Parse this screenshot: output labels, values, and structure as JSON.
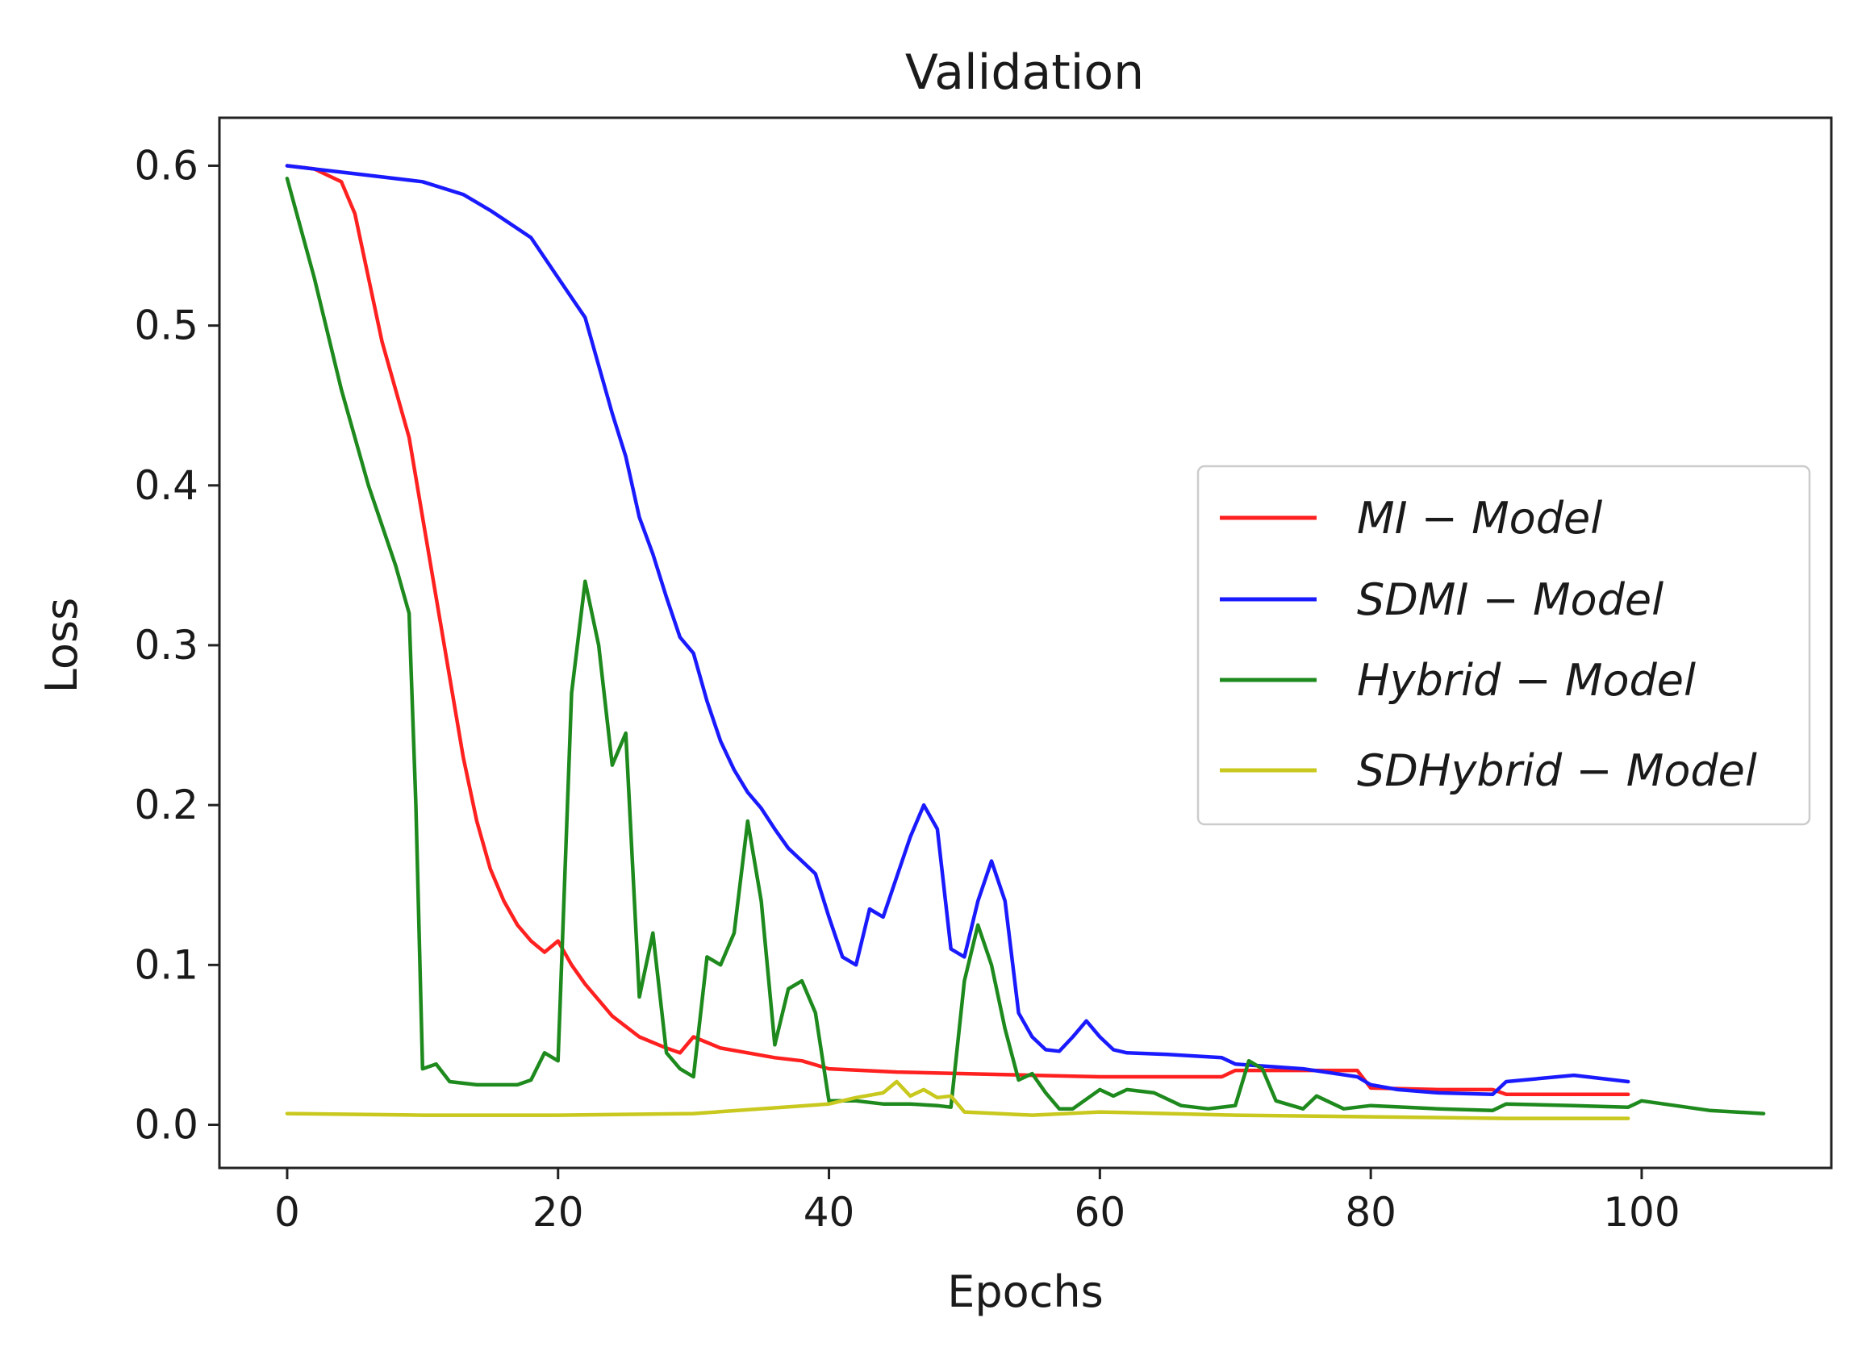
{
  "chart_data": {
    "type": "line",
    "title": "Validation",
    "xlabel": "Epochs",
    "ylabel": "Loss",
    "xlim": [
      -5,
      114
    ],
    "ylim": [
      -0.027,
      0.63
    ],
    "xticks": [
      0,
      20,
      40,
      60,
      80,
      100
    ],
    "yticks": [
      0.0,
      0.1,
      0.2,
      0.3,
      0.4,
      0.5,
      0.6
    ],
    "xtick_labels": [
      "0",
      "20",
      "40",
      "60",
      "80",
      "100"
    ],
    "ytick_labels": [
      "0.0",
      "0.1",
      "0.2",
      "0.3",
      "0.4",
      "0.5",
      "0.6"
    ],
    "legend_position": "center-right",
    "series": [
      {
        "name": "MI − Model",
        "color": "#ff2020",
        "x": [
          0,
          2,
          4,
          5,
          6,
          7,
          8,
          9,
          10,
          11,
          12,
          13,
          14,
          15,
          16,
          17,
          18,
          19,
          20,
          21,
          22,
          24,
          26,
          28,
          29,
          30,
          32,
          34,
          36,
          38,
          40,
          45,
          50,
          55,
          60,
          65,
          69,
          70,
          75,
          79,
          80,
          85,
          89,
          90,
          95,
          99
        ],
        "y": [
          0.6,
          0.598,
          0.59,
          0.57,
          0.53,
          0.49,
          0.46,
          0.43,
          0.38,
          0.33,
          0.28,
          0.23,
          0.19,
          0.16,
          0.14,
          0.125,
          0.115,
          0.108,
          0.115,
          0.1,
          0.088,
          0.068,
          0.055,
          0.048,
          0.045,
          0.055,
          0.048,
          0.045,
          0.042,
          0.04,
          0.035,
          0.033,
          0.032,
          0.031,
          0.03,
          0.03,
          0.03,
          0.034,
          0.034,
          0.034,
          0.023,
          0.022,
          0.022,
          0.019,
          0.019,
          0.019
        ]
      },
      {
        "name": "SDMI − Model",
        "color": "#1a1aff",
        "x": [
          0,
          5,
          10,
          13,
          15,
          18,
          20,
          22,
          23,
          24,
          25,
          26,
          27,
          28,
          29,
          30,
          31,
          32,
          33,
          34,
          35,
          36,
          37,
          38,
          39,
          40,
          41,
          42,
          43,
          44,
          45,
          46,
          47,
          48,
          49,
          50,
          51,
          52,
          53,
          54,
          55,
          56,
          57,
          58,
          59,
          60,
          61,
          62,
          65,
          69,
          70,
          75,
          79,
          80,
          82,
          85,
          89,
          90,
          95,
          99
        ],
        "y": [
          0.6,
          0.595,
          0.59,
          0.582,
          0.572,
          0.555,
          0.53,
          0.505,
          0.475,
          0.445,
          0.418,
          0.38,
          0.357,
          0.33,
          0.305,
          0.295,
          0.265,
          0.24,
          0.222,
          0.208,
          0.198,
          0.185,
          0.173,
          0.165,
          0.157,
          0.13,
          0.105,
          0.1,
          0.135,
          0.13,
          0.155,
          0.18,
          0.2,
          0.185,
          0.11,
          0.105,
          0.14,
          0.165,
          0.14,
          0.07,
          0.055,
          0.047,
          0.046,
          0.055,
          0.065,
          0.055,
          0.047,
          0.045,
          0.044,
          0.042,
          0.038,
          0.035,
          0.03,
          0.025,
          0.022,
          0.02,
          0.019,
          0.027,
          0.031,
          0.027
        ]
      },
      {
        "name": "Hybrid − Model",
        "color": "#1e8a1e",
        "x": [
          0,
          2,
          4,
          6,
          8,
          9,
          9.5,
          10,
          11,
          12,
          14,
          16,
          17,
          18,
          19,
          20,
          21,
          22,
          23,
          24,
          25,
          26,
          27,
          28,
          29,
          30,
          31,
          32,
          33,
          34,
          35,
          36,
          37,
          38,
          39,
          40,
          42,
          44,
          46,
          48,
          49,
          50,
          51,
          52,
          53,
          54,
          55,
          56,
          57,
          58,
          60,
          61,
          62,
          64,
          66,
          68,
          70,
          71,
          72,
          73,
          75,
          76,
          78,
          80,
          85,
          89,
          90,
          95,
          99,
          100,
          105,
          109
        ],
        "y": [
          0.592,
          0.53,
          0.46,
          0.4,
          0.35,
          0.32,
          0.2,
          0.035,
          0.038,
          0.027,
          0.025,
          0.025,
          0.025,
          0.028,
          0.045,
          0.04,
          0.27,
          0.34,
          0.3,
          0.225,
          0.245,
          0.08,
          0.12,
          0.045,
          0.035,
          0.03,
          0.105,
          0.1,
          0.12,
          0.19,
          0.14,
          0.05,
          0.085,
          0.09,
          0.07,
          0.015,
          0.015,
          0.013,
          0.013,
          0.012,
          0.011,
          0.09,
          0.125,
          0.1,
          0.06,
          0.028,
          0.032,
          0.02,
          0.01,
          0.01,
          0.022,
          0.018,
          0.022,
          0.02,
          0.012,
          0.01,
          0.012,
          0.04,
          0.035,
          0.015,
          0.01,
          0.018,
          0.01,
          0.012,
          0.01,
          0.009,
          0.013,
          0.012,
          0.011,
          0.015,
          0.009,
          0.007
        ]
      },
      {
        "name": "SDHybrid − Model",
        "color": "#c8c81e",
        "x": [
          0,
          10,
          20,
          30,
          40,
          42,
          44,
          45,
          46,
          47,
          48,
          49,
          50,
          55,
          60,
          70,
          80,
          90,
          99
        ],
        "y": [
          0.007,
          0.006,
          0.006,
          0.007,
          0.013,
          0.017,
          0.02,
          0.027,
          0.018,
          0.022,
          0.017,
          0.018,
          0.008,
          0.006,
          0.008,
          0.006,
          0.005,
          0.004,
          0.004
        ]
      }
    ]
  }
}
